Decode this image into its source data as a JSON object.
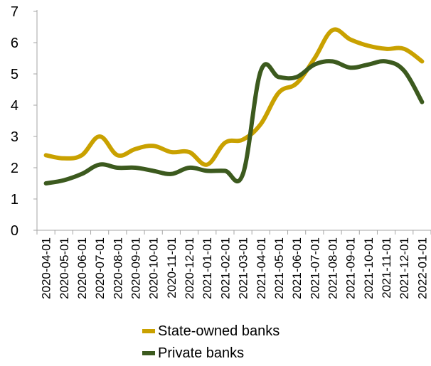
{
  "chart_data": {
    "type": "line",
    "x": [
      "2020-04-01",
      "2020-05-01",
      "2020-06-01",
      "2020-07-01",
      "2020-08-01",
      "2020-09-01",
      "2020-10-01",
      "2020-11-01",
      "2020-12-01",
      "2021-01-01",
      "2021-02-01",
      "2021-03-01",
      "2021-04-01",
      "2021-05-01",
      "2021-06-01",
      "2021-07-01",
      "2021-08-01",
      "2021-09-01",
      "2021-10-01",
      "2021-11-01",
      "2021-12-01",
      "2022-01-01"
    ],
    "series": [
      {
        "name": "State-owned banks",
        "color": "#c9a100",
        "values": [
          2.4,
          2.3,
          2.4,
          3.0,
          2.4,
          2.6,
          2.7,
          2.5,
          2.5,
          2.1,
          2.8,
          2.9,
          3.4,
          4.4,
          4.7,
          5.5,
          6.4,
          6.1,
          5.9,
          5.8,
          5.8,
          5.4
        ]
      },
      {
        "name": "Private banks",
        "color": "#3c5a1e",
        "values": [
          1.5,
          1.6,
          1.8,
          2.1,
          2.0,
          2.0,
          1.9,
          1.8,
          2.0,
          1.9,
          1.9,
          1.8,
          5.1,
          4.9,
          4.9,
          5.3,
          5.4,
          5.2,
          5.3,
          5.4,
          5.1,
          4.1
        ]
      }
    ],
    "ylim": [
      0,
      7
    ],
    "yticks": [
      "0",
      "1",
      "2",
      "3",
      "4",
      "5",
      "6",
      "7"
    ],
    "grid": false,
    "legend_position": "bottom"
  }
}
